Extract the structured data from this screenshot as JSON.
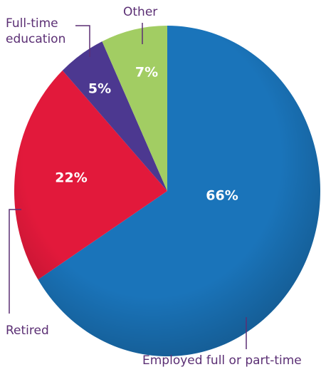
{
  "chart_data": {
    "type": "pie",
    "categories": [
      "Employed full or part-time",
      "Retired",
      "Full-time education",
      "Other"
    ],
    "values": [
      66,
      22,
      5,
      7
    ],
    "value_labels": [
      "66%",
      "22%",
      "5%",
      "7%"
    ],
    "colors": [
      "#1a74ba",
      "#e2193b",
      "#4c3890",
      "#a2cd63"
    ]
  }
}
